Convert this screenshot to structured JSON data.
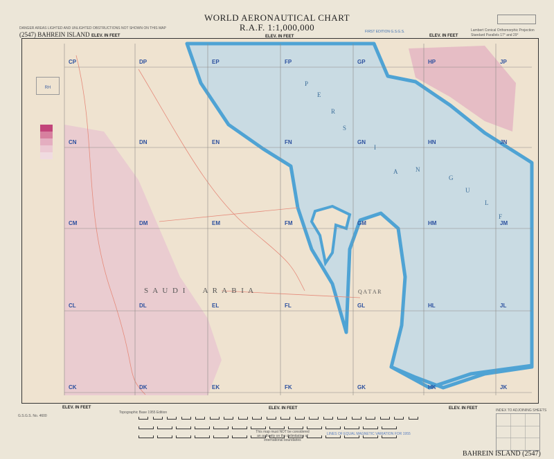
{
  "header": {
    "title": "WORLD AERONAUTICAL CHART",
    "scale": "R.A.F. 1:1,000,000",
    "sheet_left": "(2547) BAHREIN ISLAND",
    "danger_note": "DANGER AREAS LIGHTED AND UNLIGHTED OBSTRUCTIONS NOT SHOWN ON THIS MAP",
    "edition": "FIRST EDITION G.S.G.S.",
    "projection": "Lambert Conical Orthomorphic Projection",
    "parallels": "Standard Parallels 17° and 29°",
    "elev_label": "ELEV. IN FEET"
  },
  "map": {
    "grid_columns": [
      "C",
      "D",
      "E",
      "F",
      "G",
      "H",
      "J"
    ],
    "grid_rows": [
      "P",
      "N",
      "M",
      "L",
      "K"
    ],
    "place_labels": {
      "saudi": "S A U D I     A R A B I A",
      "qatar": "Q A T A R",
      "gulf": [
        "P",
        "E",
        "R",
        "S",
        "I",
        "A",
        "N",
        "G",
        "U",
        "L",
        "F"
      ]
    },
    "legend_box": "RH",
    "colors": {
      "water": "#c9dbe3",
      "coast": "#4fa3d4",
      "land": "#efe3d0",
      "relief": "#e8c6cf",
      "grid": "#8d8a86",
      "roads": "#e58a7a"
    }
  },
  "footer": {
    "elev_label": "ELEV. IN FEET",
    "topo_base": "Topographic Base 1955 Edition",
    "boundary_note": "This map must NOT be considered an authority on the delimitation of international boundaries",
    "magnetic_note": "LINES OF EQUAL MAGNETIC VARIATION FOR 1955",
    "index_title": "INDEX TO ADJOINING SHEETS",
    "sheet_right": "BAHREIN ISLAND (2547)",
    "gsgs": "G.S.G.S. No. 4600"
  }
}
